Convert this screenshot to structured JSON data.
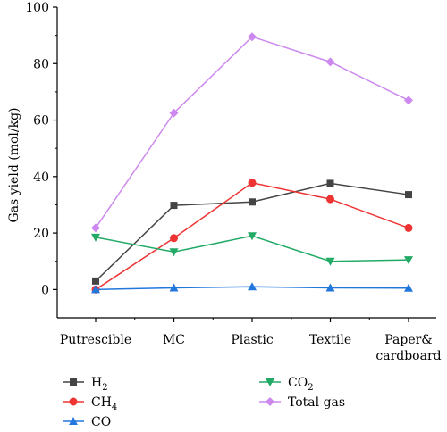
{
  "chart_data": {
    "type": "line",
    "title": "",
    "xlabel": "",
    "ylabel": "Gas yield (mol/kg)",
    "ylim": [
      -10,
      100
    ],
    "yticks": [
      0,
      20,
      40,
      60,
      80,
      100
    ],
    "grid": false,
    "legend_position": "bottom",
    "categories": [
      {
        "lines": [
          "Putrescible"
        ]
      },
      {
        "lines": [
          "MC"
        ]
      },
      {
        "lines": [
          "Plastic"
        ]
      },
      {
        "lines": [
          "Textile"
        ]
      },
      {
        "lines": [
          "Paper&",
          "cardboard"
        ]
      }
    ],
    "series": [
      {
        "name": "H",
        "sub": "2",
        "color": "#444444",
        "marker": "square",
        "values": [
          3.0,
          29.8,
          31.0,
          37.6,
          33.6
        ]
      },
      {
        "name": "CH",
        "sub": "4",
        "color": "#ee3333",
        "marker": "circle",
        "values": [
          0.0,
          18.2,
          37.8,
          32.0,
          21.8
        ]
      },
      {
        "name": "CO",
        "sub": "",
        "color": "#2277dd",
        "marker": "triangle",
        "values": [
          0.0,
          0.6,
          1.0,
          0.6,
          0.5
        ]
      },
      {
        "name": "CO",
        "sub": "2",
        "color": "#22aa66",
        "marker": "triangle-down",
        "values": [
          18.5,
          13.3,
          19.0,
          10.0,
          10.5
        ]
      },
      {
        "name": "Total gas",
        "sub": "",
        "color": "#cc88ee",
        "marker": "diamond",
        "values": [
          21.8,
          62.5,
          89.5,
          80.6,
          67.0
        ]
      }
    ]
  }
}
